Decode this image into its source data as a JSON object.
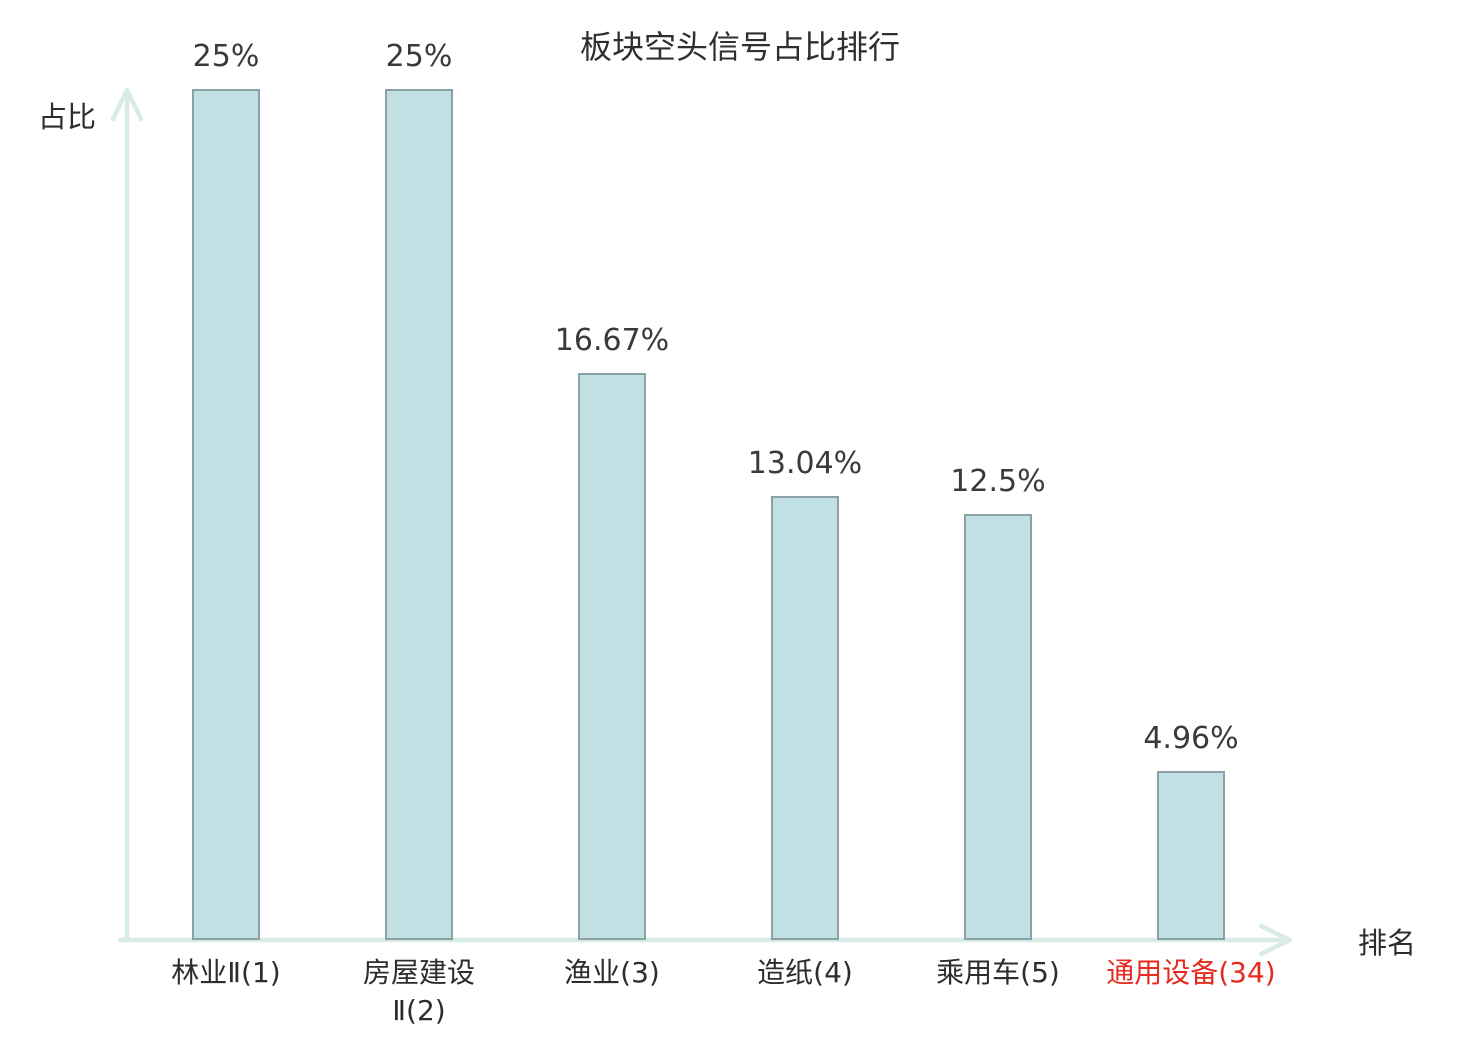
{
  "colors": {
    "bar_fill": "#c0e0e3",
    "bar_border": "#8aa0a5",
    "axis": "#d8ece6",
    "text": "#3a3a3a",
    "category_text": "#2d2d2d",
    "highlight": "#e52b1e"
  },
  "chart_data": {
    "type": "bar",
    "title": "板块空头信号占比排行",
    "xlabel": "排名",
    "ylabel": "占比",
    "categories": [
      "林业Ⅱ(1)",
      "房屋建设\nⅡ(2)",
      "渔业(3)",
      "造纸(4)",
      "乘用车(5)",
      "通用设备(34)"
    ],
    "values": [
      25,
      25,
      16.67,
      13.04,
      12.5,
      4.96
    ],
    "value_labels": [
      "25%",
      "25%",
      "16.67%",
      "13.04%",
      "12.5%",
      "4.96%"
    ],
    "highlight_index": 5,
    "ylim": [
      0,
      25
    ],
    "grid": false,
    "legend": false
  }
}
